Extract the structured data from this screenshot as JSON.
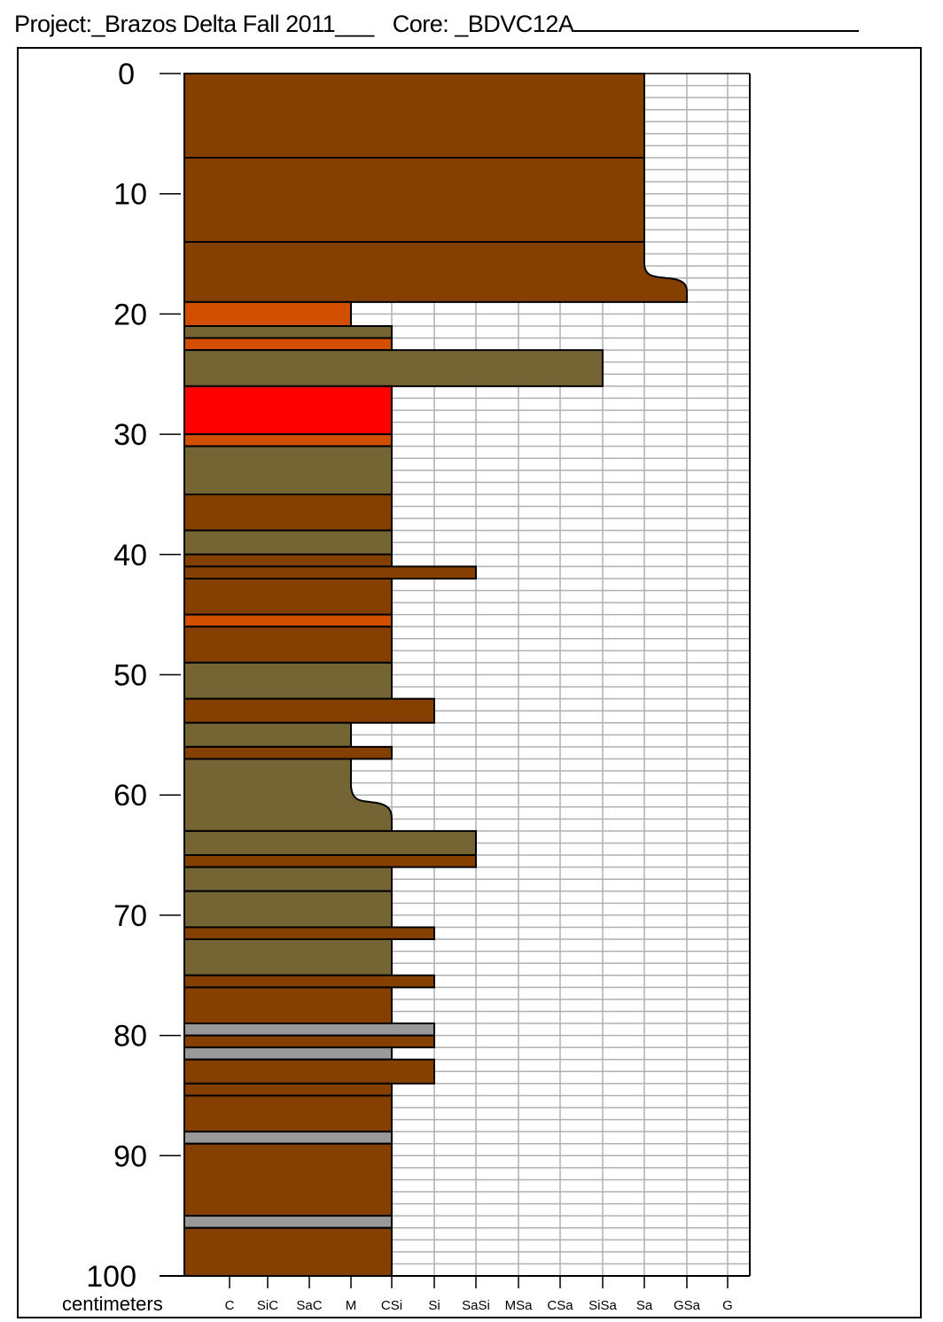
{
  "header": {
    "project_label": "Project:_Brazos Delta Fall 2011___",
    "core_label": "Core: _BDVC12A"
  },
  "chart_data": {
    "type": "core-log",
    "y_axis": {
      "label": "centimeters",
      "range": [
        0,
        100
      ],
      "ticks": [
        0,
        10,
        20,
        30,
        40,
        50,
        60,
        70,
        80,
        90,
        100
      ]
    },
    "x_axis": {
      "grain_sizes": [
        "C",
        "SiC",
        "SaC",
        "M",
        "CSi",
        "Si",
        "SaSi",
        "MSa",
        "CSa",
        "SiSa",
        "Sa",
        "GSa",
        "G"
      ]
    },
    "colors": {
      "brown": "#854000",
      "orange": "#D24E00",
      "olive": "#756534",
      "red": "#FF0000",
      "gray": "#999999"
    },
    "layers": [
      {
        "top": 0,
        "bottom": 7,
        "grain": "Sa",
        "color": "brown"
      },
      {
        "top": 7,
        "bottom": 14,
        "grain": "Sa",
        "color": "brown"
      },
      {
        "top": 14,
        "bottom": 19,
        "grain": "Sa",
        "grain_bottom": "GSa",
        "color": "brown"
      },
      {
        "top": 19,
        "bottom": 21,
        "grain": "M",
        "color": "orange"
      },
      {
        "top": 21,
        "bottom": 22,
        "grain": "CSi",
        "color": "olive"
      },
      {
        "top": 22,
        "bottom": 23,
        "grain": "CSi",
        "color": "orange"
      },
      {
        "top": 23,
        "bottom": 26,
        "grain": "SiSa",
        "color": "olive"
      },
      {
        "top": 26,
        "bottom": 30,
        "grain": "CSi",
        "color": "red"
      },
      {
        "top": 30,
        "bottom": 31,
        "grain": "CSi",
        "color": "orange"
      },
      {
        "top": 31,
        "bottom": 35,
        "grain": "CSi",
        "color": "olive"
      },
      {
        "top": 35,
        "bottom": 38,
        "grain": "CSi",
        "color": "brown"
      },
      {
        "top": 38,
        "bottom": 40,
        "grain": "CSi",
        "color": "olive"
      },
      {
        "top": 40,
        "bottom": 41,
        "grain": "CSi",
        "color": "brown"
      },
      {
        "top": 41,
        "bottom": 42,
        "grain": "SaSi",
        "color": "brown"
      },
      {
        "top": 42,
        "bottom": 45,
        "grain": "CSi",
        "color": "brown"
      },
      {
        "top": 45,
        "bottom": 46,
        "grain": "CSi",
        "color": "orange"
      },
      {
        "top": 46,
        "bottom": 49,
        "grain": "CSi",
        "color": "brown"
      },
      {
        "top": 49,
        "bottom": 52,
        "grain": "CSi",
        "color": "olive"
      },
      {
        "top": 52,
        "bottom": 54,
        "grain": "Si",
        "color": "brown"
      },
      {
        "top": 54,
        "bottom": 56,
        "grain": "M",
        "color": "olive"
      },
      {
        "top": 56,
        "bottom": 57,
        "grain": "CSi",
        "color": "brown"
      },
      {
        "top": 57,
        "bottom": 63,
        "grain": "M",
        "grain_bottom": "CSi",
        "color": "olive"
      },
      {
        "top": 63,
        "bottom": 65,
        "grain": "SaSi",
        "color": "olive"
      },
      {
        "top": 65,
        "bottom": 66,
        "grain": "SaSi",
        "color": "brown"
      },
      {
        "top": 66,
        "bottom": 68,
        "grain": "CSi",
        "color": "olive"
      },
      {
        "top": 68,
        "bottom": 71,
        "grain": "CSi",
        "color": "olive"
      },
      {
        "top": 71,
        "bottom": 72,
        "grain": "Si",
        "color": "brown"
      },
      {
        "top": 72,
        "bottom": 75,
        "grain": "CSi",
        "color": "olive"
      },
      {
        "top": 75,
        "bottom": 76,
        "grain": "Si",
        "color": "brown"
      },
      {
        "top": 76,
        "bottom": 79,
        "grain": "CSi",
        "color": "brown"
      },
      {
        "top": 79,
        "bottom": 80,
        "grain": "Si",
        "color": "gray"
      },
      {
        "top": 80,
        "bottom": 81,
        "grain": "Si",
        "color": "brown"
      },
      {
        "top": 81,
        "bottom": 82,
        "grain": "CSi",
        "color": "gray"
      },
      {
        "top": 82,
        "bottom": 84,
        "grain": "Si",
        "color": "brown"
      },
      {
        "top": 84,
        "bottom": 85,
        "grain": "CSi",
        "color": "brown"
      },
      {
        "top": 85,
        "bottom": 88,
        "grain": "CSi",
        "color": "brown"
      },
      {
        "top": 88,
        "bottom": 89,
        "grain": "CSi",
        "color": "gray"
      },
      {
        "top": 89,
        "bottom": 95,
        "grain": "CSi",
        "color": "brown"
      },
      {
        "top": 95,
        "bottom": 96,
        "grain": "CSi",
        "color": "gray"
      },
      {
        "top": 96,
        "bottom": 100,
        "grain": "CSi",
        "color": "brown"
      }
    ]
  }
}
